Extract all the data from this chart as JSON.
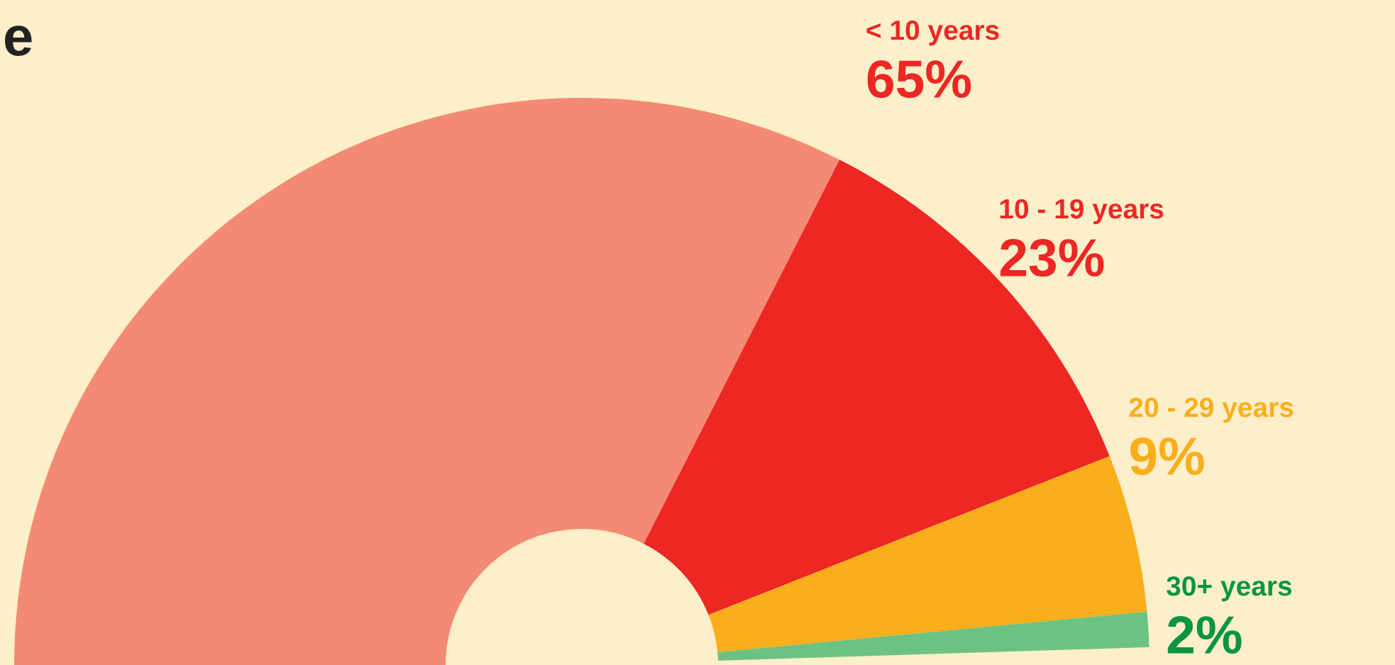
{
  "chart_data": {
    "type": "donut",
    "title": "e",
    "categories": [
      "< 10 years",
      "10 - 19 years",
      "20 - 29 years",
      "30+ years"
    ],
    "values": [
      65,
      23,
      9,
      2
    ],
    "colors": [
      "#f38b74",
      "#ec2724",
      "#f9ae1b",
      "#6cc283"
    ],
    "value_labels": [
      "65%",
      "23%",
      "9%",
      "2%"
    ],
    "legend": false
  }
}
